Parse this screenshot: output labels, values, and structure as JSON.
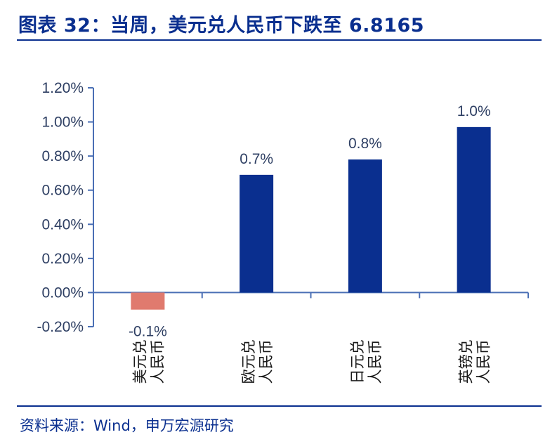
{
  "header": {
    "title": "图表 32：当周，美元兑人民币下跌至 6.8165"
  },
  "footer": {
    "source": "资料来源：Wind，申万宏源研究"
  },
  "colors": {
    "positive": "#0a2f8f",
    "negative": "#e07a6e",
    "axis": "#4a6fb5",
    "title": "#0a2f8f"
  },
  "chart_data": {
    "type": "bar",
    "categories": [
      "美元兑人民币",
      "欧元兑人民币",
      "日元兑人民币",
      "英镑兑人民币"
    ],
    "category_lines": [
      [
        "美元兑",
        "人民币"
      ],
      [
        "欧元兑",
        "人民币"
      ],
      [
        "日元兑",
        "人民币"
      ],
      [
        "英镑兑",
        "人民币"
      ]
    ],
    "values": [
      -0.1,
      0.69,
      0.78,
      0.97
    ],
    "data_labels": [
      "-0.1%",
      "0.7%",
      "0.8%",
      "1.0%"
    ],
    "yticks": [
      "-0.20%",
      "0.00%",
      "0.20%",
      "0.40%",
      "0.60%",
      "0.80%",
      "1.00%",
      "1.20%"
    ],
    "ytick_values": [
      -0.2,
      0,
      0.2,
      0.4,
      0.6,
      0.8,
      1.0,
      1.2
    ],
    "ylim": [
      -0.2,
      1.2
    ],
    "grid": false,
    "legend": "none"
  }
}
